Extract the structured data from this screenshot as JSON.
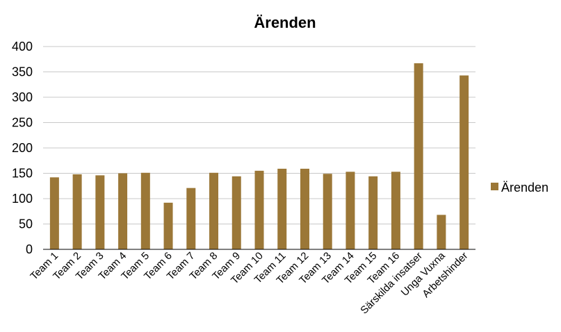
{
  "chart_data": {
    "type": "bar",
    "title": "Ärenden",
    "xlabel": "",
    "ylabel": "",
    "ylim": [
      0,
      400
    ],
    "yticks": [
      0,
      50,
      100,
      150,
      200,
      250,
      300,
      350,
      400
    ],
    "grid": true,
    "legend": "right",
    "categories": [
      "Team 1",
      "Team 2",
      "Team 3",
      "Team 4",
      "Team 5",
      "Team 6",
      "Team 7",
      "Team 8",
      "Team 9",
      "Team 10",
      "Team 11",
      "Team 12",
      "Team 13",
      "Team 14",
      "Team 15",
      "Team 16",
      "Särskilda insatser",
      "Unga Vuxna",
      "Arbetshinder"
    ],
    "series": [
      {
        "name": "Ärenden",
        "color": "#9B7737",
        "values": [
          142,
          148,
          146,
          150,
          151,
          92,
          121,
          151,
          144,
          155,
          159,
          159,
          149,
          153,
          144,
          153,
          367,
          68,
          343
        ]
      }
    ]
  }
}
